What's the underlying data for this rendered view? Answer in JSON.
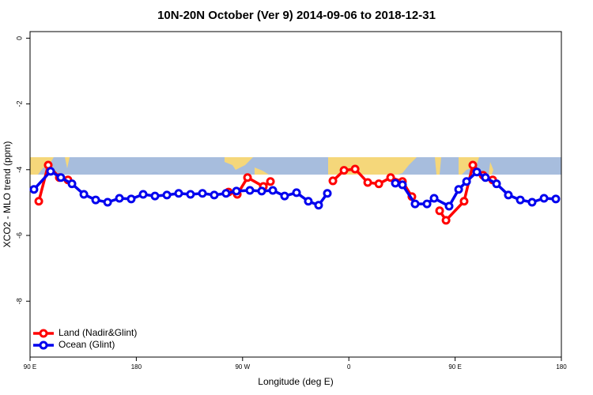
{
  "chart_data": {
    "type": "line",
    "title": "10N-20N October (Ver 9)   2014-09-06 to 2018-12-31",
    "x_label": "Longitude (deg E)",
    "y_label": "XCO2 - MLO trend (ppm)",
    "xlim": [
      90,
      540
    ],
    "xticks": [
      {
        "value": 90,
        "label": "90 E"
      },
      180,
      {
        "value": 270,
        "label": "90 W"
      },
      {
        "value": 360,
        "label": "0"
      },
      {
        "value": 450,
        "label": "90 E"
      },
      {
        "value": 540,
        "label": "180"
      }
    ],
    "ylim": [
      -9.7,
      0.2
    ],
    "yticks": [
      0,
      -2,
      -4,
      -6,
      -8
    ],
    "legend": "bottom-left",
    "series": [
      {
        "name": "Land (Nadir&Glint)",
        "color": "#ff0000",
        "x": [
          97.4,
          105.4,
          114.8,
          122.1,
          null,
          258.1,
          265.5,
          274.2,
          287.6,
          293.6,
          null,
          346.5,
          355.9,
          365.3,
          376,
          385.4,
          395.4,
          405.4,
          413.4,
          null,
          436.9,
          442.3,
          457.6,
          465,
          473.7,
          481.8
        ],
        "values": [
          -4.96,
          -3.86,
          -4.24,
          -4.31,
          null,
          -4.68,
          -4.75,
          -4.24,
          -4.51,
          -4.36,
          null,
          -4.34,
          -4.02,
          -3.98,
          -4.39,
          -4.43,
          -4.24,
          -4.36,
          -4.82,
          null,
          -5.25,
          -5.54,
          -4.96,
          -3.86,
          -4.17,
          -4.31
        ]
      },
      {
        "name": "Ocean (Glint)",
        "color": "#0000ee",
        "x": [
          93.3,
          107.4,
          116.1,
          125.5,
          135.6,
          145.6,
          155.7,
          165.7,
          175.7,
          185.8,
          195.8,
          205.9,
          215.9,
          225.9,
          236,
          246,
          256,
          264.8,
          276.2,
          286.2,
          295.6,
          305.6,
          315.7,
          325.7,
          334.4,
          341.8,
          null,
          399.4,
          405.4,
          416.1,
          426.2,
          432.2,
          444.9,
          453,
          459.7,
          468.4,
          475.7,
          485.1,
          495.1,
          505.2,
          515.2,
          525.3,
          535.3
        ],
        "values": [
          -4.6,
          -4.05,
          -4.24,
          -4.43,
          -4.75,
          -4.92,
          -4.99,
          -4.87,
          -4.89,
          -4.75,
          -4.8,
          -4.77,
          -4.72,
          -4.75,
          -4.72,
          -4.77,
          -4.72,
          -4.65,
          -4.63,
          -4.65,
          -4.63,
          -4.8,
          -4.7,
          -4.96,
          -5.08,
          -4.72,
          null,
          -4.41,
          -4.46,
          -5.04,
          -5.04,
          -4.87,
          -5.11,
          -4.6,
          -4.36,
          -4.07,
          -4.24,
          -4.43,
          -4.77,
          -4.92,
          -4.99,
          -4.87,
          -4.89
        ]
      }
    ]
  }
}
